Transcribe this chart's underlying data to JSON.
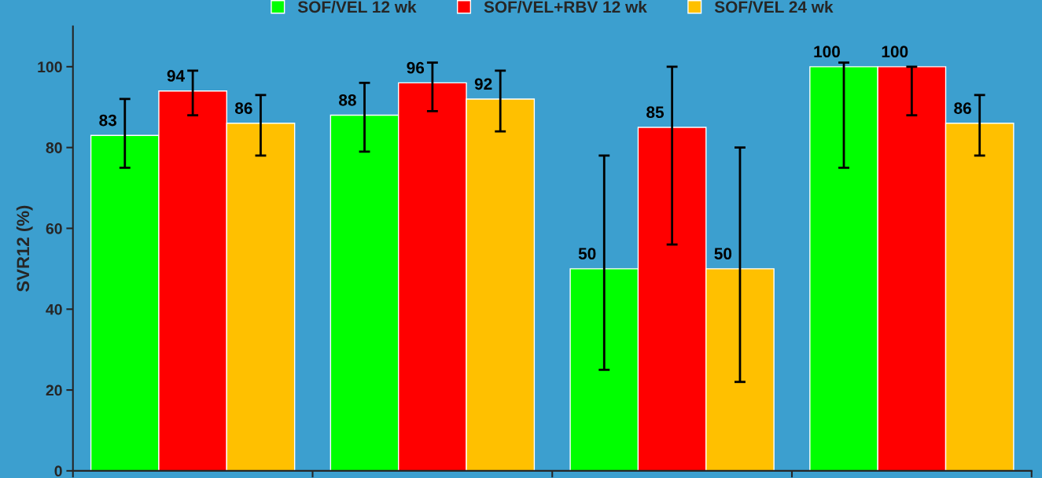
{
  "chart_data": {
    "type": "bar",
    "ylabel": "SVR12 (%)",
    "categories": [
      null,
      null,
      null,
      null
    ],
    "series": [
      {
        "name": "SOF/VEL 12 wk",
        "color": "#00ff00",
        "values": [
          83,
          88,
          50,
          100
        ],
        "errors": [
          [
            75,
            92
          ],
          [
            79,
            96
          ],
          [
            25,
            78
          ],
          [
            75,
            101
          ]
        ]
      },
      {
        "name": "SOF/VEL+RBV 12 wk",
        "color": "#ff0000",
        "values": [
          94,
          96,
          85,
          100
        ],
        "errors": [
          [
            88,
            99
          ],
          [
            89,
            101
          ],
          [
            56,
            100
          ],
          [
            88,
            100
          ]
        ]
      },
      {
        "name": "SOF/VEL 24 wk",
        "color": "#ffc000",
        "values": [
          86,
          92,
          50,
          86
        ],
        "errors": [
          [
            78,
            93
          ],
          [
            84,
            99
          ],
          [
            22,
            80
          ],
          [
            78,
            93
          ]
        ]
      }
    ],
    "ylim": [
      0,
      110
    ],
    "yticks": [
      0,
      20,
      40,
      60,
      80,
      100
    ],
    "data_labels": true,
    "legend": "top",
    "grid": false
  }
}
